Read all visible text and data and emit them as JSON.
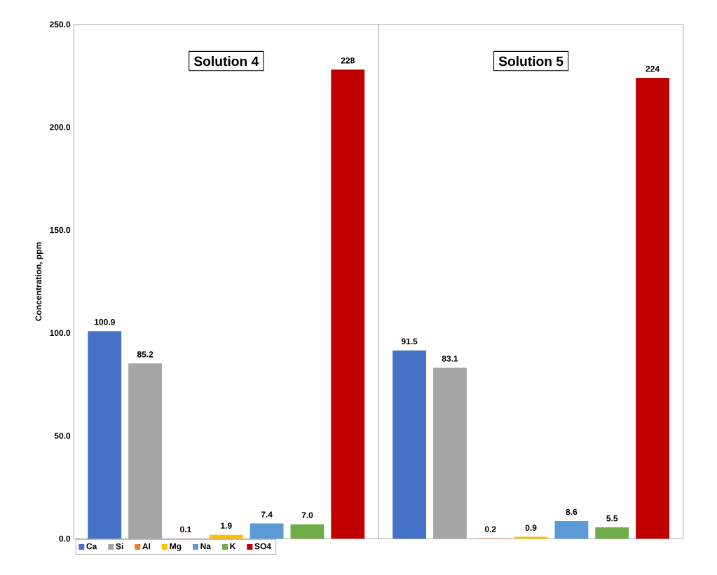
{
  "chart_data": {
    "type": "bar",
    "ylabel": "Concentration, ppm",
    "categories": [
      "Solution 4",
      "Solution 5"
    ],
    "series": [
      {
        "name": "Ca",
        "color": "#4472c4",
        "values": [
          100.9,
          91.5
        ],
        "value_labels": [
          "100.9",
          "91.5"
        ]
      },
      {
        "name": "Si",
        "color": "#a5a5a5",
        "values": [
          85.2,
          83.1
        ],
        "value_labels": [
          "85.2",
          "83.1"
        ]
      },
      {
        "name": "Al",
        "color": "#ed7d31",
        "values": [
          0.1,
          0.2
        ],
        "value_labels": [
          "0.1",
          "0.2"
        ]
      },
      {
        "name": "Mg",
        "color": "#ffc000",
        "values": [
          1.9,
          0.9
        ],
        "value_labels": [
          "1.9",
          "0.9"
        ]
      },
      {
        "name": "Na",
        "color": "#5b9bd5",
        "values": [
          7.4,
          8.6
        ],
        "value_labels": [
          "7.4",
          "8.6"
        ]
      },
      {
        "name": "K",
        "color": "#70ad47",
        "values": [
          7.0,
          5.5
        ],
        "value_labels": [
          "7.0",
          "5.5"
        ]
      },
      {
        "name": "SO4",
        "color": "#c00000",
        "values": [
          228,
          224
        ],
        "value_labels": [
          "228",
          "224"
        ]
      }
    ],
    "ylim": [
      0,
      250
    ],
    "yticks": [
      {
        "value": 0,
        "label": "0.0"
      },
      {
        "value": 50,
        "label": "50.0"
      },
      {
        "value": 100,
        "label": "100.0"
      },
      {
        "value": 150,
        "label": "150.0"
      },
      {
        "value": 200,
        "label": "200.0"
      },
      {
        "value": 250,
        "label": "250.0"
      }
    ],
    "legend": "bottom",
    "grid": false
  }
}
